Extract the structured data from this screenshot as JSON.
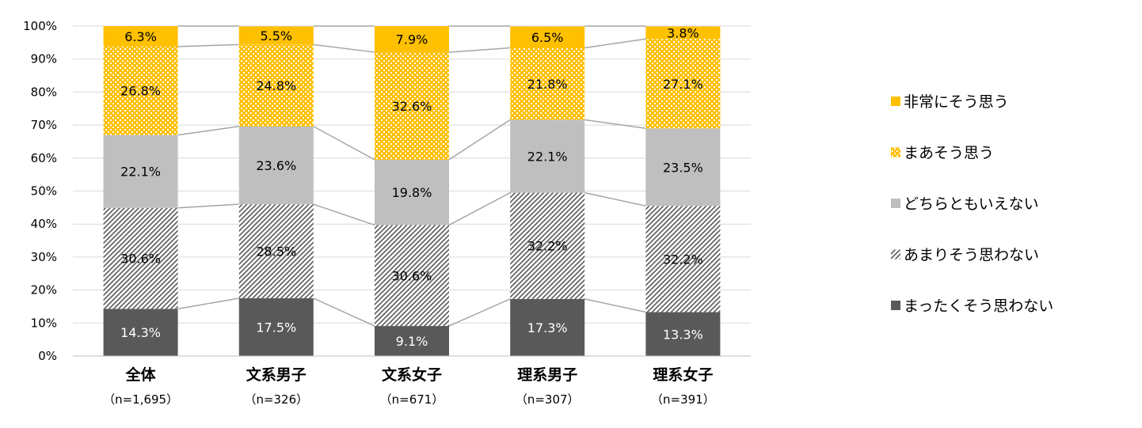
{
  "chart_data": {
    "type": "bar",
    "stacked": true,
    "percent": true,
    "categories": [
      "全体",
      "文系男子",
      "文系女子",
      "理系男子",
      "理系女子"
    ],
    "category_n": [
      "（n=1,695）",
      "（n=326）",
      "（n=671）",
      "（n=307）",
      "（n=391）"
    ],
    "y_ticks": [
      "0%",
      "10%",
      "20%",
      "30%",
      "40%",
      "50%",
      "60%",
      "70%",
      "80%",
      "90%",
      "100%"
    ],
    "ylim": [
      0,
      100
    ],
    "series": [
      {
        "name": "まったくそう思わない",
        "values": [
          14.3,
          17.5,
          9.1,
          17.3,
          13.3
        ],
        "labels": [
          "14.3%",
          "17.5%",
          "9.1%",
          "17.3%",
          "13.3%"
        ],
        "color": "#595959",
        "pattern": "solid",
        "label_color": "#ffffff"
      },
      {
        "name": "あまりそう思わない",
        "values": [
          30.6,
          28.5,
          30.6,
          32.2,
          32.2
        ],
        "labels": [
          "30.6%",
          "28.5%",
          "30.6%",
          "32.2%",
          "32.2%"
        ],
        "color": "#7f7f7f",
        "pattern": "diagonal",
        "label_color": "#000000"
      },
      {
        "name": "どちらともいえない",
        "values": [
          22.1,
          23.6,
          19.8,
          22.1,
          23.5
        ],
        "labels": [
          "22.1%",
          "23.6%",
          "19.8%",
          "22.1%",
          "23.5%"
        ],
        "color": "#bfbfbf",
        "pattern": "solid",
        "label_color": "#000000"
      },
      {
        "name": "まあそう思う",
        "values": [
          26.8,
          24.8,
          32.6,
          21.8,
          27.1
        ],
        "labels": [
          "26.8%",
          "24.8%",
          "32.6%",
          "21.8%",
          "27.1%"
        ],
        "color": "#ffc000",
        "pattern": "dots",
        "label_color": "#000000"
      },
      {
        "name": "非常にそう思う",
        "values": [
          6.3,
          5.5,
          7.9,
          6.5,
          3.8
        ],
        "labels": [
          "6.3%",
          "5.5%",
          "7.9%",
          "6.5%",
          "3.8%"
        ],
        "color": "#ffc000",
        "pattern": "solid",
        "label_color": "#000000"
      }
    ],
    "legend_order": [
      "非常にそう思う",
      "まあそう思う",
      "どちらともいえない",
      "あまりそう思わない",
      "まったくそう思わない"
    ],
    "legend_position": "right",
    "grid": true,
    "connector_lines": true
  }
}
